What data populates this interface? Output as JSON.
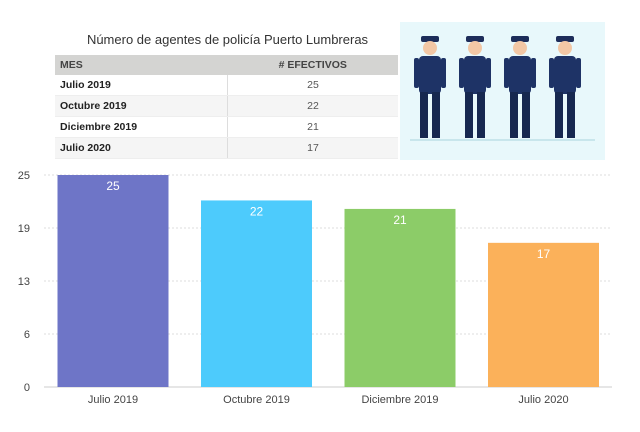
{
  "table": {
    "title": "Número de agentes de policía Puerto Lumbreras",
    "headers": [
      "MES",
      "# EFECTIVOS"
    ],
    "rows": [
      {
        "mes": "Julio 2019",
        "efectivos": "25"
      },
      {
        "mes": "Octubre 2019",
        "efectivos": "22"
      },
      {
        "mes": "Diciembre 2019",
        "efectivos": "21"
      },
      {
        "mes": "Julio 2020",
        "efectivos": "17"
      }
    ]
  },
  "illustration": {
    "icon": "police-officers-illustration",
    "background": "#e8f8fb"
  },
  "chart_data": {
    "type": "bar",
    "categories": [
      "Julio 2019",
      "Octubre 2019",
      "Diciembre 2019",
      "Julio 2020"
    ],
    "values": [
      25,
      22,
      21,
      17
    ],
    "colors": [
      "#6e75c7",
      "#4dcbfc",
      "#8ccc68",
      "#fbb15a"
    ],
    "ylim": [
      0,
      25
    ],
    "yticks": [
      "0",
      "6",
      "13",
      "19",
      "25"
    ],
    "grid": true,
    "xlabel": "",
    "ylabel": "",
    "title": ""
  }
}
